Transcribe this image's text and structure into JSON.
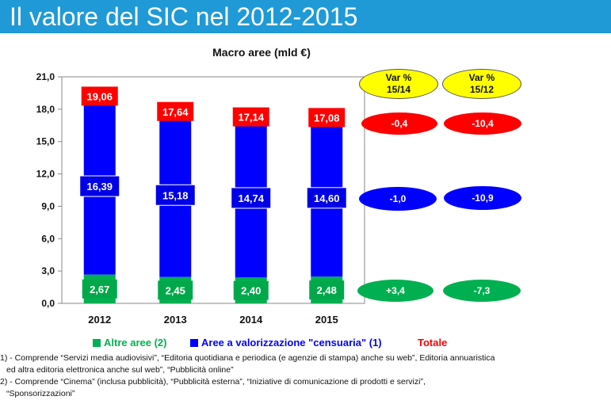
{
  "header": {
    "title": "Il valore del SIC nel 2012-2015"
  },
  "colors": {
    "header_bg": "#1f9ad6",
    "blue_series": "#0000ff",
    "green_series": "#00b050",
    "total": "#ff0000",
    "yellow": "#ffff00"
  },
  "chart_data": {
    "type": "bar",
    "stacked": true,
    "title": "Macro aree (mld €)",
    "categories": [
      "2012",
      "2013",
      "2014",
      "2015"
    ],
    "ylim": [
      0,
      21
    ],
    "yticks": [
      "0,0",
      "3,0",
      "6,0",
      "9,0",
      "12,0",
      "15,0",
      "18,0",
      "21,0"
    ],
    "grid": false,
    "series": [
      {
        "name": "Altre aree (2)",
        "color": "#00b050",
        "values": [
          2.67,
          2.45,
          2.4,
          2.48
        ],
        "labels": [
          "2,67",
          "2,45",
          "2,40",
          "2,48"
        ]
      },
      {
        "name": "Aree a valorizzazione \"censuaria\" (1)",
        "color": "#0000ff",
        "values": [
          16.39,
          15.18,
          14.74,
          14.6
        ],
        "labels": [
          "16,39",
          "15,18",
          "14,74",
          "14,60"
        ]
      }
    ],
    "totals": {
      "name": "Totale",
      "color": "#ff0000",
      "values": [
        19.06,
        17.64,
        17.14,
        17.08
      ],
      "labels": [
        "19,06",
        "17,64",
        "17,14",
        "17,08"
      ]
    },
    "legend_position": "bottom"
  },
  "variations": {
    "headers": [
      {
        "line1": "Var %",
        "line2": "15/14"
      },
      {
        "line1": "Var %",
        "line2": "15/12"
      }
    ],
    "total": [
      "-0,4",
      "-10,4"
    ],
    "censuaria": [
      "-1,0",
      "-10,9"
    ],
    "altre": [
      "+3,4",
      "-7,3"
    ]
  },
  "notes": [
    "1) - Comprende “Servizi media audiovisivi”, “Editoria quotidiana e periodica (e agenzie di stampa) anche su web”, Editoria annuaristica",
    "   ed altra editoria elettronica anche sul web”, “Pubblicità online”",
    "2) - Comprende “Cinema” (inclusa pubblicità), “Pubblicità esterna”, “Iniziative di comunicazione di prodotti e servizi”,",
    "“Sponsorizzazioni”"
  ]
}
